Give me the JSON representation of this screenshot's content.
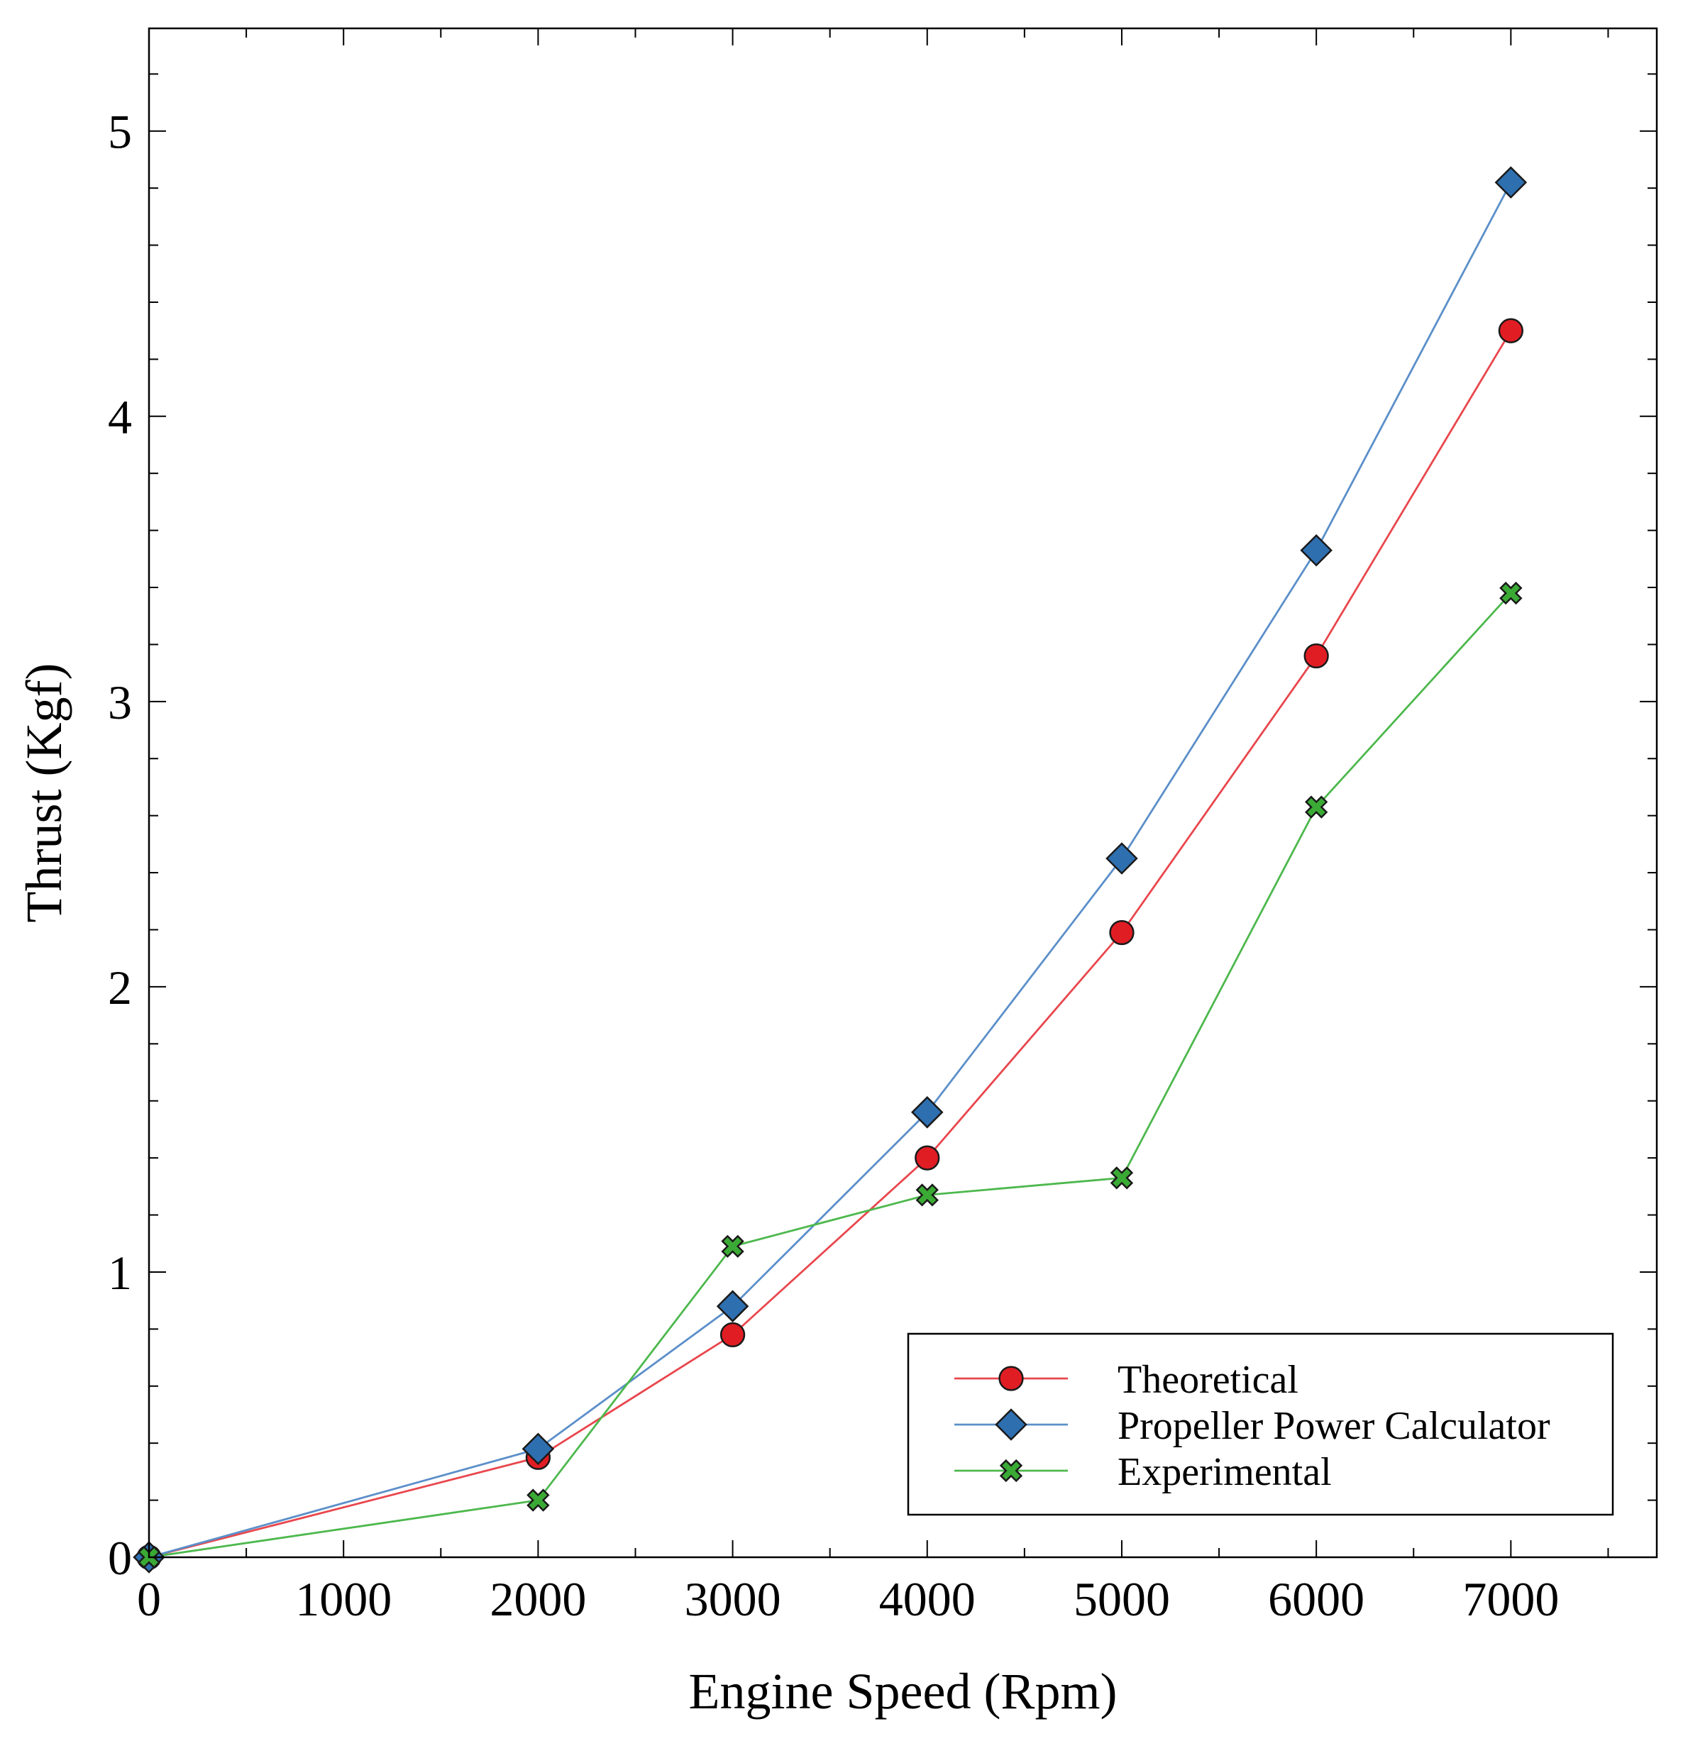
{
  "chart_data": {
    "type": "line",
    "title": "",
    "xlabel": "Engine Speed (Rpm)",
    "ylabel": "Thrust (Kgf)",
    "xlim": [
      0,
      7750
    ],
    "ylim": [
      0,
      5.36
    ],
    "xticks": [
      0,
      1000,
      2000,
      3000,
      4000,
      5000,
      6000,
      7000
    ],
    "xtick_labels": [
      "0",
      "1000",
      "2000",
      "3000",
      "4000",
      "5000",
      "6000",
      "7000"
    ],
    "xminor_step": 500,
    "yticks": [
      0,
      1,
      2,
      3,
      4,
      5
    ],
    "ytick_labels": [
      "0",
      "1",
      "2",
      "3",
      "4",
      "5"
    ],
    "yminor_step": 0.2,
    "grid": false,
    "legend_position": "lower-right",
    "x": [
      0,
      2000,
      3000,
      4000,
      5000,
      6000,
      7000
    ],
    "series": [
      {
        "name": "Theoretical",
        "marker": "circle",
        "line_color": "#e8474d",
        "marker_color": "#e11d24",
        "values": [
          0.0,
          0.35,
          0.78,
          1.4,
          2.19,
          3.16,
          4.3
        ]
      },
      {
        "name": "Propeller Power Calculator",
        "marker": "diamond",
        "line_color": "#5b8fc9",
        "marker_color": "#2e6fb0",
        "values": [
          0.0,
          0.38,
          0.88,
          1.56,
          2.45,
          3.53,
          4.82
        ]
      },
      {
        "name": "Experimental",
        "marker": "x",
        "line_color": "#4db84d",
        "marker_color": "#3aaa35",
        "values": [
          0.0,
          0.2,
          1.09,
          1.27,
          1.33,
          2.63,
          3.38
        ]
      }
    ]
  }
}
